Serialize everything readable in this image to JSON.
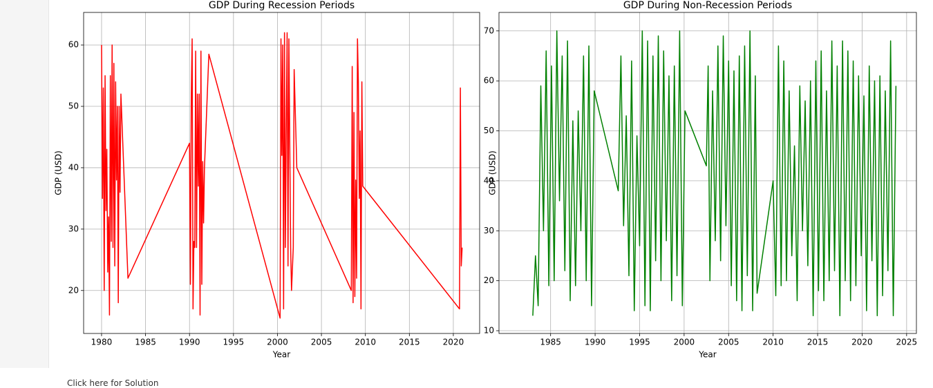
{
  "chart_data": [
    {
      "type": "line",
      "title": "GDP During Recession Periods",
      "xlabel": "Year",
      "ylabel": "GDP (USD)",
      "color": "#ff0000",
      "grid": true,
      "xlim": [
        1977.96,
        2022.99
      ],
      "ylim": [
        13.0,
        65.3
      ],
      "xticks": [
        1980,
        1985,
        1990,
        1995,
        2000,
        2005,
        2010,
        2015,
        2020
      ],
      "yticks": [
        20,
        30,
        40,
        50,
        60
      ],
      "x": [
        1980.0,
        1980.1,
        1980.2,
        1980.3,
        1980.4,
        1980.5,
        1980.6,
        1980.7,
        1980.8,
        1980.9,
        1981.0,
        1981.1,
        1981.2,
        1981.3,
        1981.4,
        1981.5,
        1981.6,
        1981.7,
        1981.8,
        1981.9,
        1982.0,
        1982.1,
        1982.2,
        1983.0,
        1990.0,
        1990.1,
        1990.2,
        1990.3,
        1990.4,
        1990.5,
        1990.6,
        1990.7,
        1990.8,
        1990.9,
        1991.0,
        1991.1,
        1991.2,
        1991.3,
        1991.4,
        1991.5,
        1991.6,
        1991.7,
        1992.2,
        2000.3,
        2000.4,
        2000.5,
        2000.6,
        2000.7,
        2000.8,
        2000.9,
        2001.0,
        2001.1,
        2001.2,
        2001.3,
        2001.5,
        2001.6,
        2001.8,
        2001.9,
        2002.2,
        2008.4,
        2008.5,
        2008.6,
        2008.7,
        2008.8,
        2008.9,
        2009.0,
        2009.1,
        2009.2,
        2009.3,
        2009.4,
        2009.5,
        2009.6,
        2009.7,
        2020.7,
        2020.8,
        2020.9,
        2021.0
      ],
      "values": [
        60,
        35,
        53,
        20,
        55,
        33,
        43,
        23,
        32,
        16,
        55,
        28,
        60,
        27,
        57,
        24,
        54,
        38,
        50,
        18,
        50,
        36,
        52,
        22,
        44,
        21,
        51,
        61,
        17,
        28,
        27,
        59,
        27,
        52,
        37,
        52,
        16,
        59,
        21,
        41,
        31,
        40,
        58.5,
        15.5,
        61,
        42,
        60,
        17,
        62,
        27,
        46,
        62,
        24,
        61,
        27,
        20,
        27,
        56,
        40,
        20,
        56.5,
        18,
        49,
        19,
        38,
        22,
        61,
        54,
        35,
        46,
        17,
        54,
        37,
        17,
        53,
        24,
        27
      ]
    },
    {
      "type": "line",
      "title": "GDP During Non-Recession Periods",
      "xlabel": "Year",
      "ylabel": "GDP (USD)",
      "color": "#008000",
      "grid": true,
      "xlim": [
        1979.2,
        2026.1
      ],
      "ylim": [
        9.45,
        73.7
      ],
      "xticks": [
        1985,
        1990,
        1995,
        2000,
        2005,
        2010,
        2015,
        2020,
        2025
      ],
      "yticks": [
        10,
        20,
        30,
        40,
        50,
        60,
        70
      ],
      "x": [
        1983.0,
        1983.3,
        1983.6,
        1983.9,
        1984.2,
        1984.5,
        1984.8,
        1985.1,
        1985.4,
        1985.7,
        1986.0,
        1986.3,
        1986.6,
        1986.9,
        1987.2,
        1987.5,
        1987.8,
        1988.1,
        1988.4,
        1988.7,
        1989.0,
        1989.3,
        1989.6,
        1989.9,
        1992.6,
        1992.9,
        1993.2,
        1993.5,
        1993.8,
        1994.1,
        1994.4,
        1994.7,
        1995.0,
        1995.3,
        1995.6,
        1995.9,
        1996.2,
        1996.5,
        1996.8,
        1997.1,
        1997.4,
        1997.7,
        1998.0,
        1998.3,
        1998.6,
        1998.9,
        1999.2,
        1999.5,
        1999.8,
        2000.1,
        2002.5,
        2002.7,
        2002.9,
        2003.2,
        2003.5,
        2003.8,
        2004.1,
        2004.4,
        2004.7,
        2005.0,
        2005.3,
        2005.6,
        2005.9,
        2006.2,
        2006.5,
        2006.8,
        2007.1,
        2007.4,
        2007.7,
        2008.0,
        2008.2,
        2010.0,
        2010.3,
        2010.6,
        2010.9,
        2011.2,
        2011.5,
        2011.8,
        2012.1,
        2012.4,
        2012.7,
        2013.0,
        2013.3,
        2013.6,
        2013.9,
        2014.2,
        2014.5,
        2014.8,
        2015.1,
        2015.4,
        2015.7,
        2016.0,
        2016.3,
        2016.6,
        2016.9,
        2017.2,
        2017.5,
        2017.8,
        2018.1,
        2018.4,
        2018.7,
        2019.0,
        2019.3,
        2019.6,
        2019.9,
        2020.2,
        2020.5,
        2020.8,
        2021.1,
        2021.4,
        2021.7,
        2022.0,
        2022.3,
        2022.6,
        2022.9,
        2023.2,
        2023.5,
        2023.8
      ],
      "values": [
        13,
        25,
        15,
        59,
        30,
        66,
        19,
        63,
        20,
        70,
        36,
        65,
        22,
        68,
        16,
        52,
        19,
        54,
        30,
        65,
        20,
        67,
        15,
        58,
        38,
        65,
        31,
        53,
        21,
        64,
        14,
        49,
        27,
        70,
        15,
        68,
        14,
        65,
        24,
        69,
        20,
        66,
        28,
        61,
        16,
        63,
        21,
        70,
        15,
        54,
        43,
        63,
        20,
        58,
        28,
        67,
        24,
        69,
        31,
        64,
        19,
        62,
        16,
        65,
        14,
        67,
        21,
        70,
        14,
        61,
        17.5,
        40,
        17,
        67,
        19,
        64,
        20,
        58,
        25,
        47,
        16,
        59,
        30,
        56,
        23,
        60,
        13,
        64,
        18,
        66,
        16,
        58,
        20,
        68,
        22,
        63,
        13,
        68,
        20,
        66,
        16,
        64,
        19,
        61,
        25,
        57,
        14,
        63,
        24,
        60,
        13,
        61,
        17,
        58,
        22,
        68,
        13,
        59
      ]
    }
  ],
  "notebook": {
    "link_text": "Click here for Solution"
  }
}
